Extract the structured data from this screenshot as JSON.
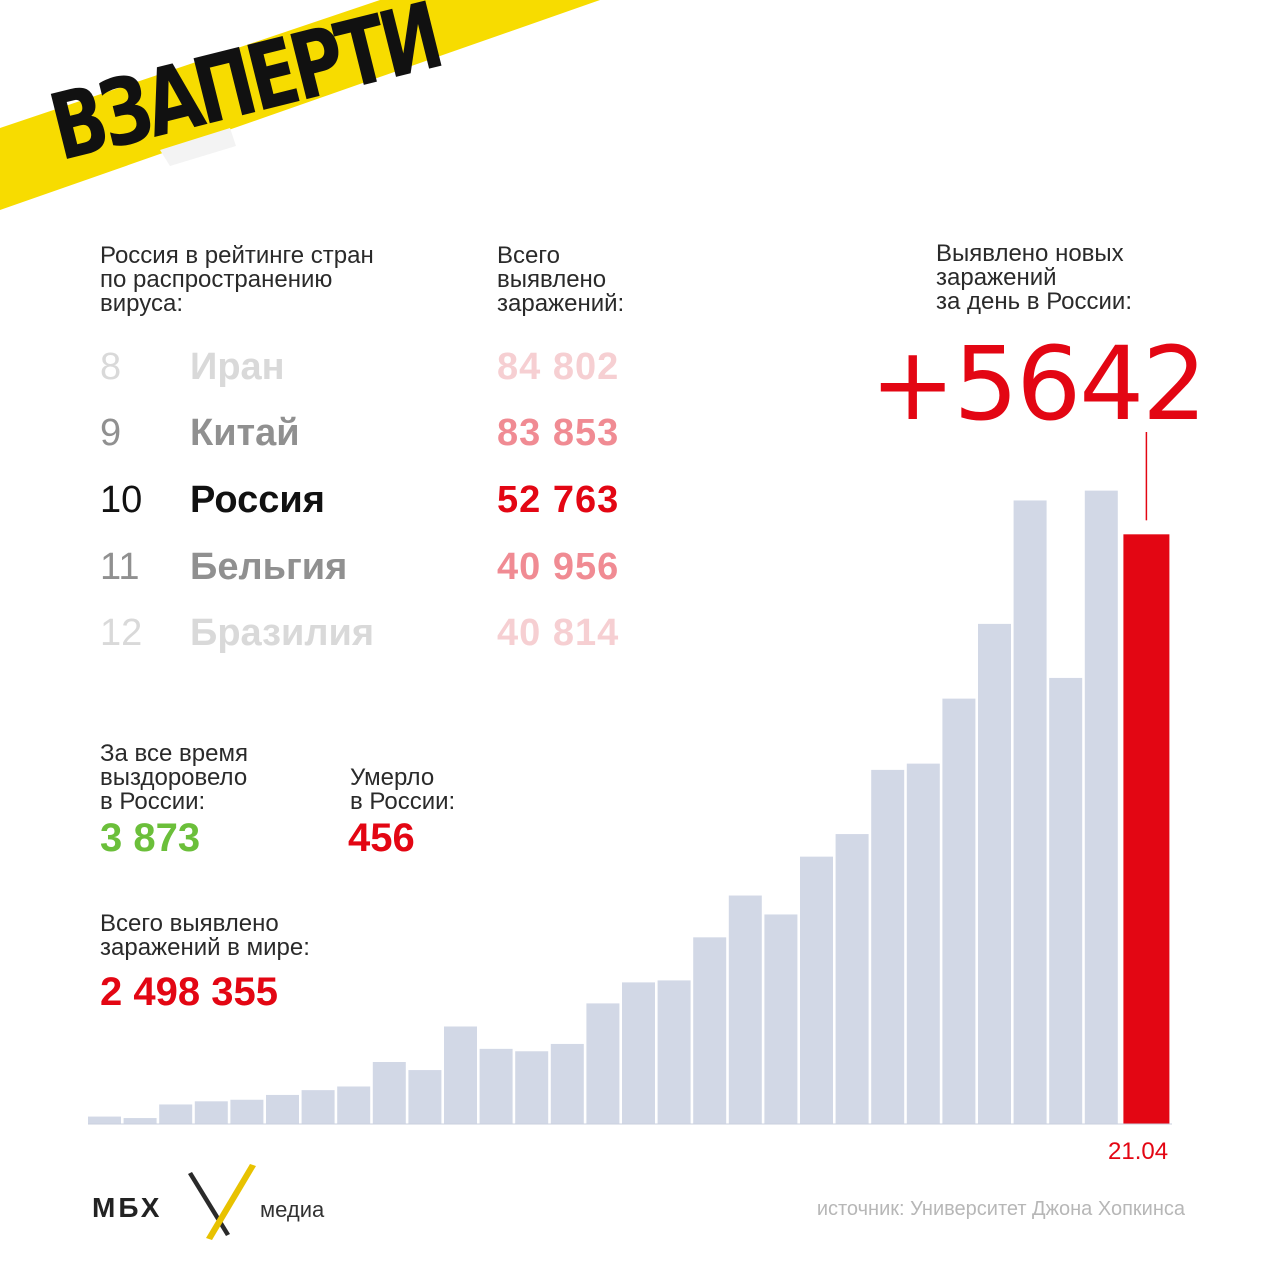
{
  "banner": {
    "title": "ВЗАПЕРТИ",
    "color": "#f7dc00"
  },
  "ranking": {
    "label": "Россия в рейтинге стран\nпо распространению\nвируса:",
    "value_label": "Всего\nвыявлено\nзаражений:",
    "rows": [
      {
        "rank": "8",
        "country": "Иран",
        "value": "84 802",
        "num_color": "#d9d9d9",
        "country_color": "#d9d9d9",
        "value_color": "#f6cfd2"
      },
      {
        "rank": "9",
        "country": "Китай",
        "value": "83 853",
        "num_color": "#909090",
        "country_color": "#909090",
        "value_color": "#f08b93"
      },
      {
        "rank": "10",
        "country": "Россия",
        "value": "52 763",
        "num_color": "#111111",
        "country_color": "#111111",
        "value_color": "#e30613"
      },
      {
        "rank": "11",
        "country": "Бельгия",
        "value": "40 956",
        "num_color": "#909090",
        "country_color": "#909090",
        "value_color": "#f08b93"
      },
      {
        "rank": "12",
        "country": "Бразилия",
        "value": "40 814",
        "num_color": "#d9d9d9",
        "country_color": "#d9d9d9",
        "value_color": "#f6cfd2"
      }
    ]
  },
  "new_cases": {
    "label": "Выявлено новых\nзаражений\nза день в России:",
    "value": "+5642"
  },
  "recovered": {
    "label": "За все время\nвыздоровело\nв России:",
    "value": "3 873"
  },
  "deaths": {
    "label": "Умерло\nв России:",
    "value": "456"
  },
  "world": {
    "label": "Всего выявлено\nзаражений в мире:",
    "value": "2 498 355"
  },
  "chart_data": {
    "type": "bar",
    "categories": [
      "",
      "",
      "",
      "",
      "",
      "",
      "",
      "",
      "",
      "",
      "",
      "",
      "",
      "",
      "",
      "",
      "",
      "",
      "",
      "",
      "",
      "",
      "",
      "",
      "",
      "",
      "",
      "",
      "",
      "21.04"
    ],
    "values": [
      71,
      57,
      187,
      217,
      232,
      278,
      324,
      359,
      593,
      516,
      933,
      719,
      696,
      766,
      1154,
      1355,
      1374,
      1786,
      2186,
      2005,
      2558,
      2774,
      3388,
      3448,
      4070,
      4785,
      5966,
      4268,
      6060,
      5642
    ],
    "highlight_index": 29,
    "highlight_color": "#e30613",
    "bar_color": "#d2d8e6",
    "ylim": [
      0,
      6200
    ],
    "title": "",
    "xlabel": "",
    "ylabel": ""
  },
  "footer": {
    "logo": "МБХ",
    "logo_sub": "медиа",
    "source": "источник: Университет Джона Хопкинса"
  }
}
